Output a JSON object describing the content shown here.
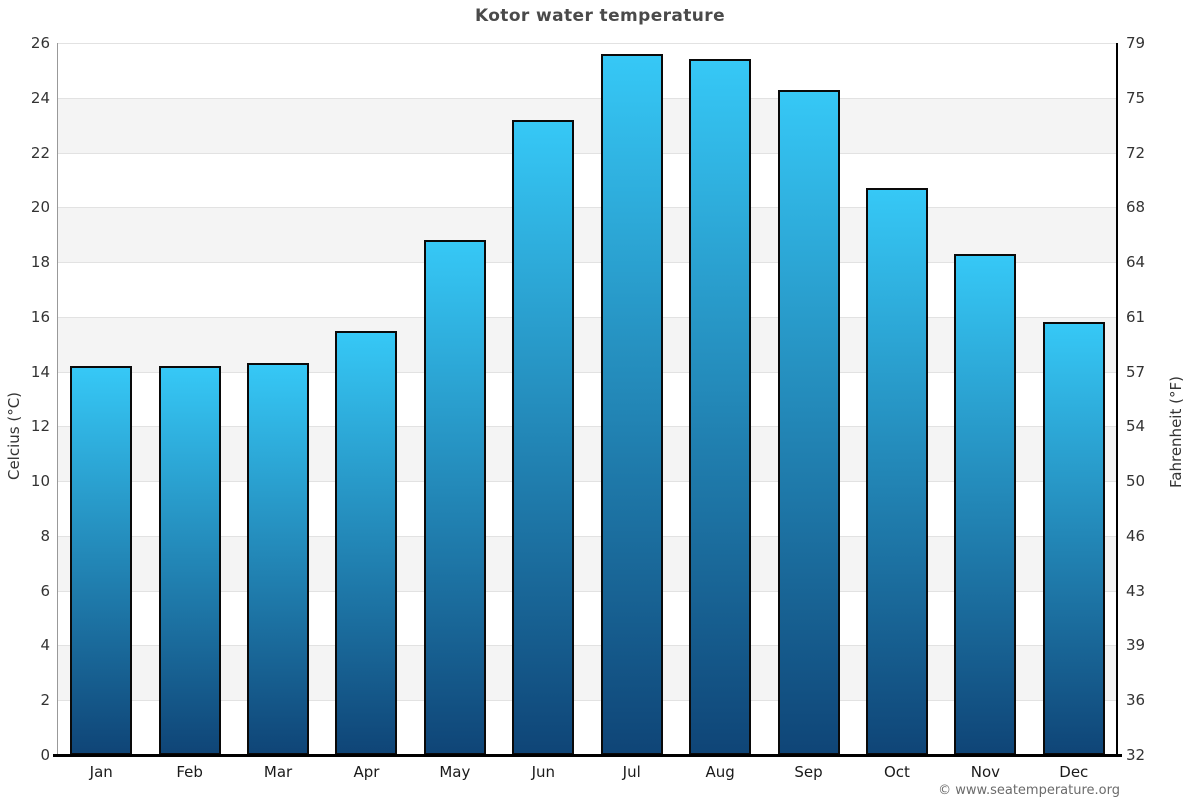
{
  "page": {
    "footer": "© www.seatemperature.org"
  },
  "chart_data": {
    "type": "bar",
    "title": "Kotor water temperature",
    "categories": [
      "Jan",
      "Feb",
      "Mar",
      "Apr",
      "May",
      "Jun",
      "Jul",
      "Aug",
      "Sep",
      "Oct",
      "Nov",
      "Dec"
    ],
    "values": [
      14.2,
      14.2,
      14.3,
      15.5,
      18.8,
      23.2,
      25.6,
      25.4,
      24.3,
      20.7,
      18.3,
      15.8
    ],
    "ylabel_left": "Celcius (°C)",
    "ylabel_right": "Fahrenheit (°F)",
    "yticks_left": [
      0,
      2,
      4,
      6,
      8,
      10,
      12,
      14,
      16,
      18,
      20,
      22,
      24,
      26
    ],
    "yticks_right": [
      32,
      36,
      39,
      43,
      46,
      50,
      54,
      57,
      61,
      64,
      68,
      72,
      75,
      79
    ],
    "ylim": [
      0,
      26
    ],
    "grid": "horizontal gridlines every 2°C with alternating white/light-gray bands",
    "legend": "none",
    "colors": {
      "bar_gradient_top": "#36c8f6",
      "bar_gradient_bottom": "#0f4577",
      "bar_border": "#0a0a0a",
      "band_gray": "#f4f4f4",
      "gridline": "#e2e2e2",
      "title_text": "#4a4a4a",
      "tick_text": "#333333",
      "axis_left": "#999999",
      "axis_dark": "#000000"
    }
  }
}
